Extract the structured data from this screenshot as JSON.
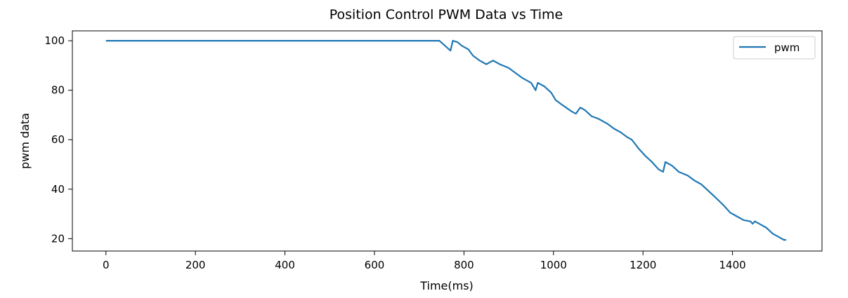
{
  "chart_data": {
    "type": "line",
    "title": "Position Control PWM Data vs Time",
    "xlabel": "Time(ms)",
    "ylabel": "pwm data",
    "xlim": [
      -75,
      1600
    ],
    "ylim": [
      15,
      104
    ],
    "xticks": [
      0,
      200,
      400,
      600,
      800,
      1000,
      1200,
      1400
    ],
    "yticks": [
      20,
      40,
      60,
      80,
      100
    ],
    "grid": false,
    "legend_position": "top-right",
    "series": [
      {
        "name": "pwm",
        "color": "#1f77b4",
        "x": [
          0,
          745,
          770,
          775,
          785,
          795,
          810,
          820,
          835,
          850,
          865,
          880,
          900,
          915,
          930,
          950,
          960,
          965,
          980,
          995,
          1005,
          1020,
          1040,
          1050,
          1060,
          1070,
          1085,
          1100,
          1120,
          1135,
          1150,
          1165,
          1175,
          1190,
          1205,
          1220,
          1235,
          1245,
          1250,
          1265,
          1280,
          1300,
          1315,
          1330,
          1345,
          1360,
          1380,
          1395,
          1410,
          1425,
          1440,
          1445,
          1450,
          1460,
          1475,
          1490,
          1505,
          1515,
          1520
        ],
        "values": [
          100,
          100,
          96,
          100,
          99.5,
          98,
          96.5,
          94,
          92,
          90.5,
          92,
          90.5,
          89,
          87,
          85,
          83,
          80,
          83,
          81.5,
          79,
          76,
          74,
          71.5,
          70.5,
          73,
          72,
          69.5,
          68.5,
          66.5,
          64.5,
          63,
          61,
          60,
          56.5,
          53.5,
          51,
          48,
          47,
          51,
          49.5,
          47,
          45.5,
          43.5,
          42,
          39.5,
          37,
          33.5,
          30.5,
          29,
          27.5,
          27,
          26,
          27,
          26,
          24.5,
          22,
          20.5,
          19.5,
          19.5
        ]
      }
    ]
  }
}
